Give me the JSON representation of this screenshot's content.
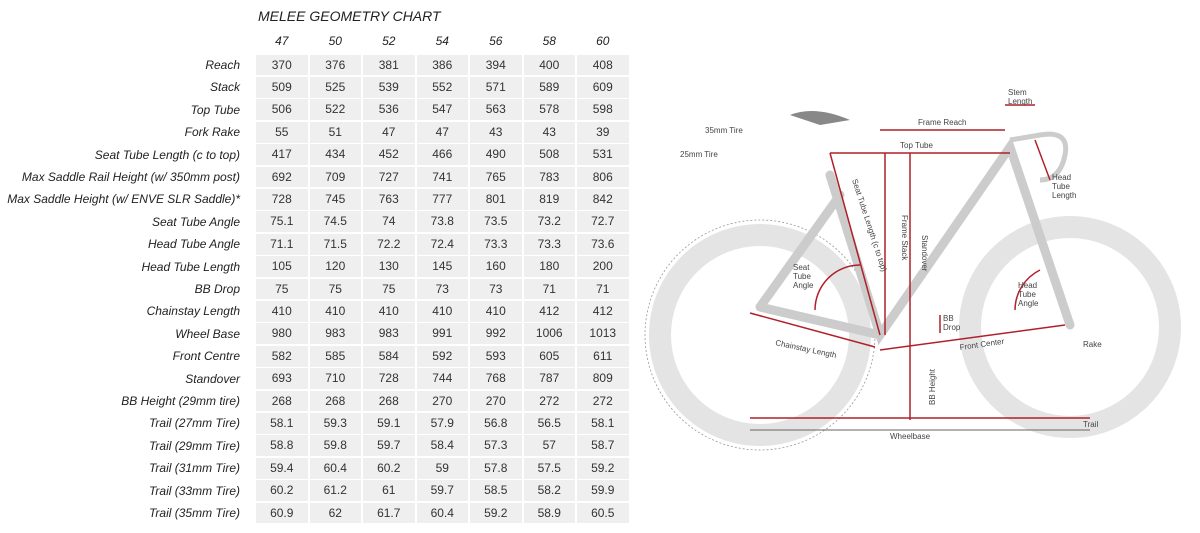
{
  "header": {
    "title": "MELEE GEOMETRY CHART"
  },
  "table": {
    "columns": [
      "47",
      "50",
      "52",
      "54",
      "56",
      "58",
      "60"
    ],
    "rows": [
      {
        "label": "Reach",
        "values": [
          370,
          376,
          381,
          386,
          394,
          400,
          408
        ]
      },
      {
        "label": "Stack",
        "values": [
          509,
          525,
          539,
          552,
          571,
          589,
          609
        ]
      },
      {
        "label": "Top Tube",
        "values": [
          506,
          522,
          536,
          547,
          563,
          578,
          598
        ]
      },
      {
        "label": "Fork Rake",
        "values": [
          55,
          51,
          47,
          47,
          43,
          43,
          39
        ]
      },
      {
        "label": "Seat Tube Length (c to top)",
        "values": [
          417,
          434,
          452,
          466,
          490,
          508,
          531
        ]
      },
      {
        "label": "Max Saddle Rail Height (w/ 350mm post)",
        "values": [
          692,
          709,
          727,
          741,
          765,
          783,
          806
        ]
      },
      {
        "label": "Max Saddle Height (w/ ENVE SLR Saddle)*",
        "values": [
          728,
          745,
          763,
          777,
          801,
          819,
          842
        ]
      },
      {
        "label": "Seat Tube Angle",
        "values": [
          75.1,
          74.5,
          74,
          73.8,
          73.5,
          73.2,
          72.7
        ]
      },
      {
        "label": "Head Tube Angle",
        "values": [
          71.1,
          71.5,
          72.2,
          72.4,
          73.3,
          73.3,
          73.6
        ]
      },
      {
        "label": "Head Tube Length",
        "values": [
          105,
          120,
          130,
          145,
          160,
          180,
          200
        ]
      },
      {
        "label": "BB Drop",
        "values": [
          75,
          75,
          75,
          73,
          73,
          71,
          71
        ]
      },
      {
        "label": "Chainstay Length",
        "values": [
          410,
          410,
          410,
          410,
          410,
          412,
          412
        ]
      },
      {
        "label": "Wheel Base",
        "values": [
          980,
          983,
          983,
          991,
          992,
          1006,
          1013
        ]
      },
      {
        "label": "Front Centre",
        "values": [
          582,
          585,
          584,
          592,
          593,
          605,
          611
        ]
      },
      {
        "label": "Standover",
        "values": [
          693,
          710,
          728,
          744,
          768,
          787,
          809
        ]
      },
      {
        "label": "BB Height (29mm tire)",
        "values": [
          268,
          268,
          268,
          270,
          270,
          272,
          272
        ]
      },
      {
        "label": "Trail (27mm Tire)",
        "values": [
          58.1,
          59.3,
          59.1,
          57.9,
          56.8,
          56.5,
          58.1
        ]
      },
      {
        "label": "Trail (29mm Tire)",
        "values": [
          58.8,
          59.8,
          59.7,
          58.4,
          57.3,
          57,
          58.7
        ]
      },
      {
        "label": "Trail (31mm Tire)",
        "values": [
          59.4,
          60.4,
          60.2,
          59,
          57.8,
          57.5,
          59.2
        ]
      },
      {
        "label": "Trail (33mm Tire)",
        "values": [
          60.2,
          61.2,
          61,
          59.7,
          58.5,
          58.2,
          59.9
        ]
      },
      {
        "label": "Trail (35mm Tire)",
        "values": [
          60.9,
          62,
          61.7,
          60.4,
          59.2,
          58.9,
          60.5
        ]
      }
    ]
  },
  "diagram": {
    "labels": {
      "tire35": [
        "35mm Tire"
      ],
      "tire25": [
        "25mm Tire"
      ],
      "frame_reach": [
        "Frame Reach"
      ],
      "top_tube": [
        "Top Tube"
      ],
      "stem_length": [
        "Stem",
        "Length"
      ],
      "head_tube_length": [
        "Head",
        "Tube",
        "Length"
      ],
      "seat_tube_length": [
        "Seat Tube Length (c to top)"
      ],
      "frame_stack": [
        "Frame Stack"
      ],
      "standover": [
        "Standover"
      ],
      "seat_tube_angle": [
        "Seat",
        "Tube",
        "Angle"
      ],
      "head_tube_angle": [
        "Head",
        "Tube",
        "Angle"
      ],
      "bb_drop": [
        "BB",
        "Drop"
      ],
      "chainstay_length": [
        "Chainstay Length"
      ],
      "front_center": [
        "Front Center"
      ],
      "rake": [
        "Rake"
      ],
      "bb_height": [
        "BB Height"
      ],
      "wheelbase": [
        "Wheelbase"
      ],
      "trail": [
        "Trail"
      ]
    }
  }
}
